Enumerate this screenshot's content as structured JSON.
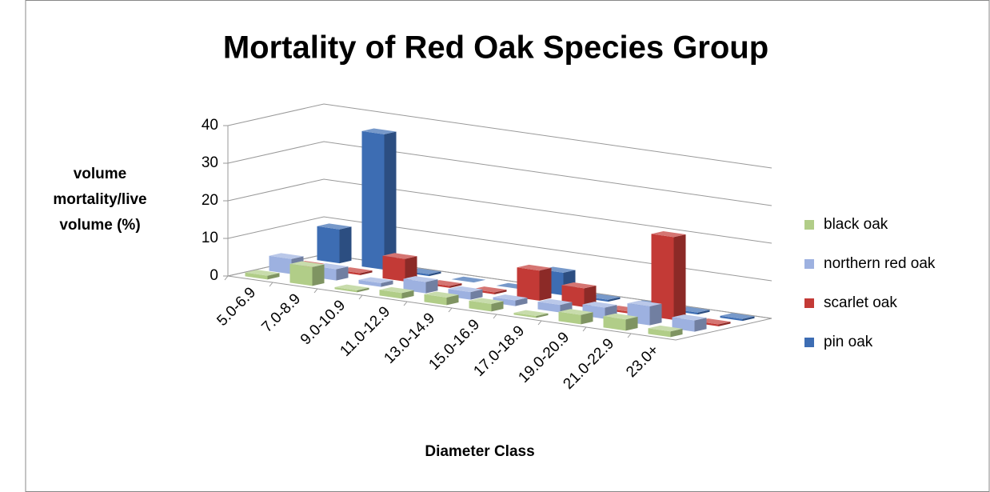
{
  "chart_data": {
    "type": "bar3d",
    "title": "Mortality of Red Oak Species Group",
    "y_label_lines": [
      "volume",
      "mortality/live",
      "volume (%)"
    ],
    "x_label": "Diameter Class",
    "categories": [
      "5.0-6.9",
      "7.0-8.9",
      "9.0-10.9",
      "11.0-12.9",
      "13.0-14.9",
      "15.0-16.9",
      "17.0-18.9",
      "19.0-20.9",
      "21.0-22.9",
      "23.0+"
    ],
    "series": [
      {
        "name": "black oak",
        "color": "#b1cd88",
        "values": [
          1,
          5,
          0.5,
          1.5,
          2,
          2,
          0.5,
          2.5,
          3,
          1.5
        ]
      },
      {
        "name": "northern red oak",
        "color": "#9db1e0",
        "values": [
          4,
          3,
          1,
          3,
          2,
          1.5,
          2,
          3,
          5,
          3
        ]
      },
      {
        "name": "scarlet oak",
        "color": "#c33a36",
        "values": [
          0.5,
          0.5,
          6,
          0.5,
          0.5,
          8,
          5,
          0.5,
          22,
          0.5
        ]
      },
      {
        "name": "pin oak",
        "color": "#3d6db3",
        "values": [
          9,
          36,
          0.5,
          0,
          0,
          6,
          0.5,
          0.5,
          0.5,
          0.5
        ]
      }
    ],
    "ylim": [
      0,
      40
    ],
    "yticks": [
      0,
      10,
      20,
      30,
      40
    ],
    "grid": true,
    "legend": "right"
  }
}
